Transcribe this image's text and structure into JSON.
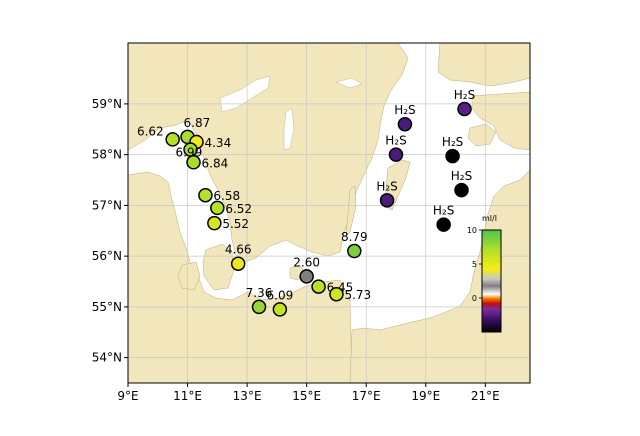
{
  "map": {
    "projection": "equirectangular",
    "lon_range": [
      9,
      22.5
    ],
    "lat_range": [
      53.5,
      60.2
    ],
    "land_color": "#f2e6bd",
    "sea_color": "#ffffff",
    "grid": true,
    "xticks": [
      {
        "value": 9,
        "label": "9°E"
      },
      {
        "value": 11,
        "label": "11°E"
      },
      {
        "value": 13,
        "label": "13°E"
      },
      {
        "value": 15,
        "label": "15°E"
      },
      {
        "value": 17,
        "label": "17°E"
      },
      {
        "value": 19,
        "label": "19°E"
      },
      {
        "value": 21,
        "label": "21°E"
      }
    ],
    "yticks": [
      {
        "value": 54,
        "label": "54°N"
      },
      {
        "value": 55,
        "label": "55°N"
      },
      {
        "value": 56,
        "label": "56°N"
      },
      {
        "value": 57,
        "label": "57°N"
      },
      {
        "value": 58,
        "label": "58°N"
      },
      {
        "value": 59,
        "label": "59°N"
      }
    ]
  },
  "stations": [
    {
      "lon": 10.5,
      "lat": 58.3,
      "value": 6.62,
      "label": "6.62",
      "color": "#b6df2a"
    },
    {
      "lon": 11.0,
      "lat": 58.35,
      "value": 6.87,
      "label": "6.87",
      "color": "#aadc2e"
    },
    {
      "lon": 11.3,
      "lat": 58.25,
      "value": 4.34,
      "label": "4.34",
      "color": "#efe81a"
    },
    {
      "lon": 11.1,
      "lat": 58.1,
      "value": 6.99,
      "label": "6.99",
      "color": "#a3da30"
    },
    {
      "lon": 11.2,
      "lat": 57.85,
      "value": 6.84,
      "label": "6.84",
      "color": "#aadc2e"
    },
    {
      "lon": 11.6,
      "lat": 57.2,
      "value": 6.58,
      "label": "6.58",
      "color": "#b6df2a"
    },
    {
      "lon": 12.0,
      "lat": 56.95,
      "value": 6.52,
      "label": "6.52",
      "color": "#b8e02a"
    },
    {
      "lon": 11.9,
      "lat": 56.65,
      "value": 5.52,
      "label": "5.52",
      "color": "#d6e720"
    },
    {
      "lon": 12.7,
      "lat": 55.85,
      "value": 4.66,
      "label": "4.66",
      "color": "#ece81b"
    },
    {
      "lon": 13.4,
      "lat": 55.0,
      "value": 7.36,
      "label": "7.36",
      "color": "#98d733"
    },
    {
      "lon": 14.1,
      "lat": 54.95,
      "value": 6.09,
      "label": "6.09",
      "color": "#c2e226"
    },
    {
      "lon": 15.0,
      "lat": 55.6,
      "value": 2.6,
      "label": "2.60",
      "color": "#7f7f7f"
    },
    {
      "lon": 15.4,
      "lat": 55.4,
      "value": 6.45,
      "label": "6.45",
      "color": "#bbe028"
    },
    {
      "lon": 16.0,
      "lat": 55.25,
      "value": 5.73,
      "label": "5.73",
      "color": "#cfe522"
    },
    {
      "lon": 16.6,
      "lat": 56.1,
      "value": 8.79,
      "label": "8.79",
      "color": "#7ccf3d"
    },
    {
      "lon": 18.3,
      "lat": 58.6,
      "value": null,
      "label": "H₂S",
      "color": "#4a1c7a"
    },
    {
      "lon": 20.3,
      "lat": 58.9,
      "value": null,
      "label": "H₂S",
      "color": "#5a2088"
    },
    {
      "lon": 18.0,
      "lat": 58.0,
      "value": null,
      "label": "H₂S",
      "color": "#4a1c7a"
    },
    {
      "lon": 19.9,
      "lat": 57.97,
      "value": null,
      "label": "H₂S",
      "color": "#000000"
    },
    {
      "lon": 20.2,
      "lat": 57.3,
      "value": null,
      "label": "H₂S",
      "color": "#000000"
    },
    {
      "lon": 17.7,
      "lat": 57.1,
      "value": null,
      "label": "H₂S",
      "color": "#4a1c7a"
    },
    {
      "lon": 19.6,
      "lat": 56.62,
      "value": null,
      "label": "H₂S",
      "color": "#000000"
    }
  ],
  "colorbar": {
    "title": "ml/l",
    "ticks": [
      {
        "value": 10,
        "label": "10"
      },
      {
        "value": 5,
        "label": "5"
      },
      {
        "value": 0,
        "label": "0"
      }
    ],
    "min": -5,
    "max": 10
  }
}
